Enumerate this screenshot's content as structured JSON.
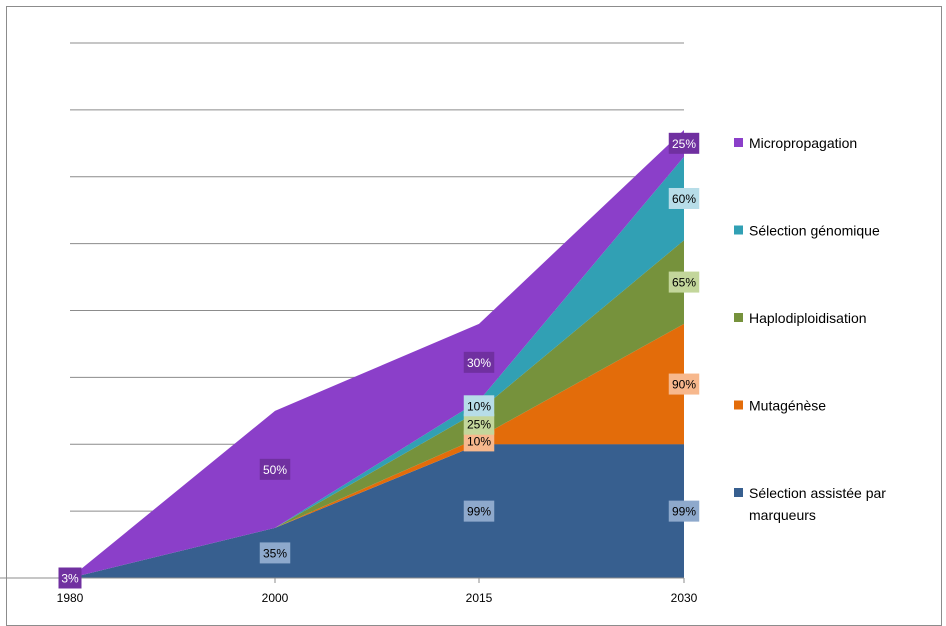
{
  "chart_data": {
    "type": "area",
    "stacked": true,
    "x": [
      "1980",
      "2000",
      "2015",
      "2030"
    ],
    "ylim": [
      0,
      8
    ],
    "grid": true,
    "legend_position": "right",
    "series": [
      {
        "name": "Sélection assistée par marqueurs",
        "color": "#375f8f",
        "values": [
          0,
          0.75,
          2.0,
          2.0
        ],
        "labels": [
          "",
          "35%",
          "99%",
          "99%"
        ],
        "label_bg": "#8ea9cc",
        "label_fg": "#000000"
      },
      {
        "name": "Mutagénèse",
        "color": "#e36c0a",
        "values": [
          0,
          0,
          0.1,
          1.8
        ],
        "labels": [
          "",
          "",
          "10%",
          "90%"
        ],
        "label_bg": "#f7b88d",
        "label_fg": "#000000"
      },
      {
        "name": "Haplodiploidisation",
        "color": "#76923c",
        "values": [
          0,
          0,
          0.4,
          1.25
        ],
        "labels": [
          "",
          "",
          "25%",
          "65%"
        ],
        "label_bg": "#c3d69b",
        "label_fg": "#000000"
      },
      {
        "name": "Sélection génomique",
        "color": "#31a0b4",
        "values": [
          0,
          0,
          0.15,
          1.25
        ],
        "labels": [
          "",
          "",
          "10%",
          "60%"
        ],
        "label_bg": "#b7dde8",
        "label_fg": "#000000"
      },
      {
        "name": "Micropropagation",
        "color": "#8b3fc9",
        "values": [
          0,
          1.75,
          1.15,
          0.4
        ],
        "labels": [
          "3%",
          "50%",
          "30%",
          "25%"
        ],
        "label_bg": "#7030a0",
        "label_fg": "#ffffff"
      }
    ]
  }
}
